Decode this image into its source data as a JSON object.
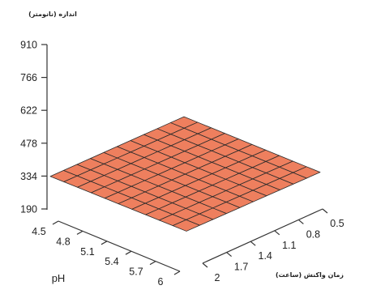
{
  "chart_data": {
    "type": "surface",
    "title": "",
    "z_axis": {
      "label": "اندازه (نانومتر)",
      "ticks": [
        190,
        334,
        478,
        622,
        766,
        910
      ],
      "range": [
        190,
        910
      ]
    },
    "x_axis": {
      "label": "pH",
      "ticks": [
        "4.5",
        "4.8",
        "5.1",
        "5.4",
        "5.7",
        "6"
      ],
      "range": [
        4.5,
        6
      ]
    },
    "y_axis": {
      "label": "زمان واکنش (ساعت)",
      "ticks": [
        "0.5",
        "0.8",
        "1.1",
        "1.4",
        "1.7",
        "2"
      ],
      "range": [
        0.5,
        2
      ]
    },
    "surface": {
      "grid": 10,
      "z_corners": {
        "ph_min_time_min": 250,
        "ph_min_time_max": 262,
        "ph_max_time_min": 255,
        "ph_max_time_max": 270
      },
      "color": "#EE7F5E",
      "edge_color": "#2a2a2a"
    }
  }
}
